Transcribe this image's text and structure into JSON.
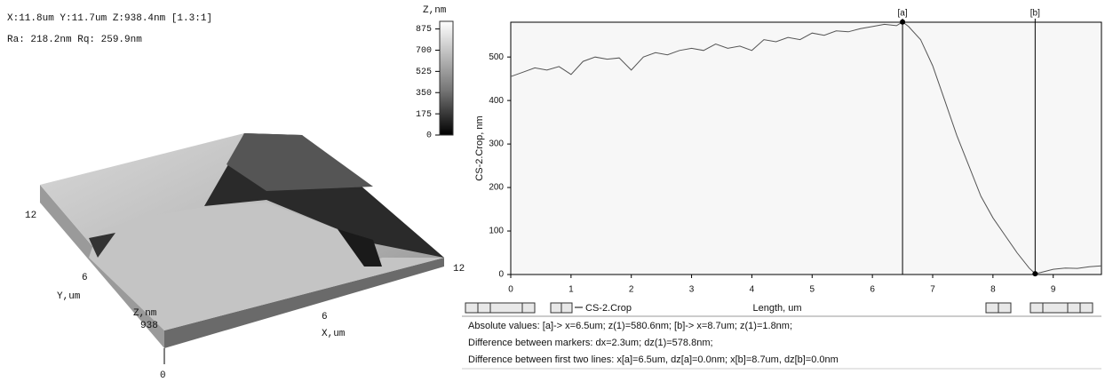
{
  "surface_panel": {
    "info_line1": "X:11.8um  Y:11.7um  Z:938.4nm [1.3:1]",
    "info_line2": "Ra: 218.2nm  Rq: 259.9nm",
    "colorbar": {
      "title": "Z,nm",
      "lim": [
        0,
        938
      ],
      "ticks": [
        0,
        175,
        350,
        525,
        700,
        875
      ]
    },
    "axis_labels": {
      "y_max": "12",
      "y_mid": "6",
      "y_title": "Y,um",
      "z_title": "Z,nm",
      "z_max": "938",
      "z_min": "0",
      "x_mid": "6",
      "x_title": "X,um",
      "x_max": "12"
    }
  },
  "profile": {
    "type": "line",
    "y_label": "CS-2.Crop, nm",
    "x_label": "Length, um",
    "series_name": "CS-2.Crop",
    "color": "#555555",
    "xlim": [
      0,
      9.8
    ],
    "ylim": [
      0,
      580
    ],
    "xticks": [
      0,
      1,
      2,
      3,
      4,
      5,
      6,
      7,
      8,
      9
    ],
    "yticks": [
      0,
      100,
      200,
      300,
      400,
      500
    ],
    "x": [
      0,
      0.2,
      0.4,
      0.6,
      0.8,
      1.0,
      1.2,
      1.4,
      1.6,
      1.8,
      2.0,
      2.2,
      2.4,
      2.6,
      2.8,
      3.0,
      3.2,
      3.4,
      3.6,
      3.8,
      4.0,
      4.2,
      4.4,
      4.6,
      4.8,
      5.0,
      5.2,
      5.4,
      5.6,
      5.8,
      6.0,
      6.2,
      6.4,
      6.5,
      6.6,
      6.8,
      7.0,
      7.2,
      7.4,
      7.6,
      7.8,
      8.0,
      8.2,
      8.4,
      8.6,
      8.7,
      8.8,
      9.0,
      9.2,
      9.4,
      9.6,
      9.8
    ],
    "values": [
      455,
      465,
      475,
      470,
      478,
      460,
      490,
      500,
      495,
      498,
      470,
      500,
      510,
      505,
      515,
      520,
      515,
      530,
      520,
      525,
      515,
      540,
      535,
      545,
      540,
      555,
      550,
      560,
      558,
      565,
      570,
      575,
      572,
      580.6,
      570,
      540,
      480,
      400,
      320,
      250,
      180,
      130,
      90,
      50,
      15,
      1.8,
      5,
      12,
      15,
      14,
      18,
      20
    ],
    "markers": [
      {
        "label": "[a]",
        "x": 6.5,
        "z": 580.6
      },
      {
        "label": "[b]",
        "x": 8.7,
        "z": 1.8
      }
    ]
  },
  "status": [
    "Absolute values: [a]-> x=6.5um;  z(1)=580.6nm;    [b]-> x=8.7um;  z(1)=1.8nm;",
    "Difference between markers: dx=2.3um; dz(1)=578.8nm;",
    "Difference between first two lines: x[a]=6.5um, dz[a]=0.0nm;   x[b]=8.7um, dz[b]=0.0nm"
  ]
}
